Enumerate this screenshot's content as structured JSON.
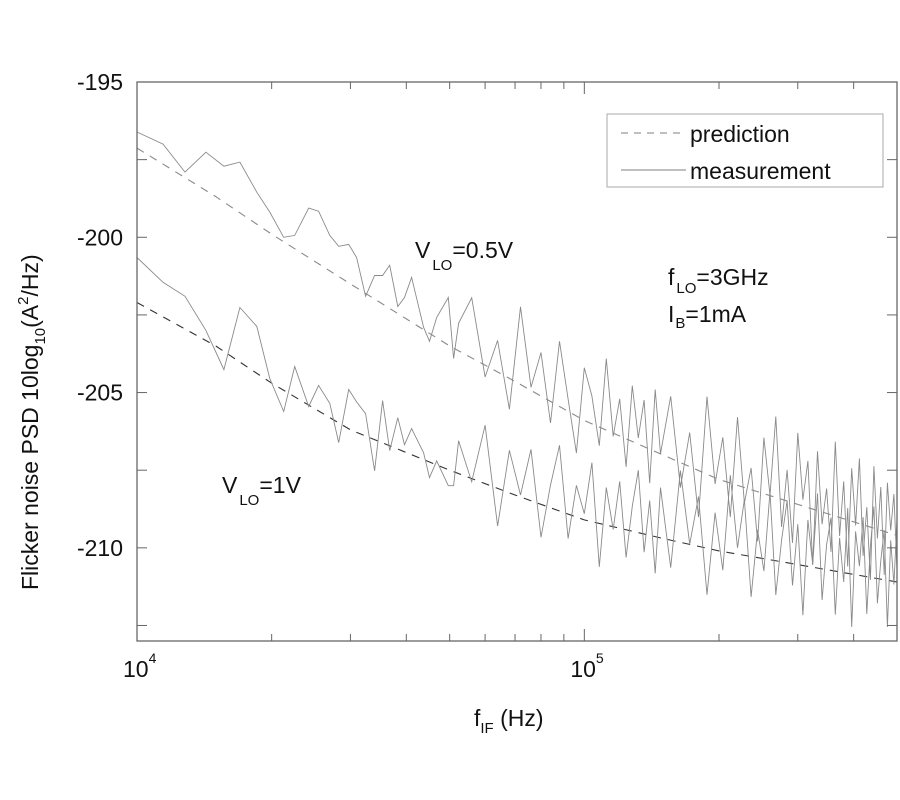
{
  "chart_data": {
    "type": "line",
    "xlabel": {
      "main": "f",
      "sub": "IF",
      "unit": " (Hz)"
    },
    "ylabel": {
      "pre": "Flicker noise PSD 10log",
      "sub": "10",
      "mid": "(A",
      "sup": "2",
      "post": "/Hz)"
    },
    "xscale": "log",
    "xlim": [
      10000,
      500000
    ],
    "ylim": [
      -213,
      -195
    ],
    "grid": false,
    "x_ticks": [
      {
        "value": 10000,
        "base": "10",
        "exp": "4"
      },
      {
        "value": 100000,
        "base": "10",
        "exp": "5"
      }
    ],
    "y_ticks": [
      {
        "value": -195,
        "label": "-195"
      },
      {
        "value": -200,
        "label": "-200"
      },
      {
        "value": -205,
        "label": "-205"
      },
      {
        "value": -210,
        "label": "-210"
      }
    ],
    "legend": {
      "placement": "top-right",
      "entries": [
        {
          "label": "prediction",
          "style": "dashed"
        },
        {
          "label": "measurement",
          "style": "solid"
        }
      ]
    },
    "annotations": [
      {
        "id": "vlo05",
        "main": "V",
        "sub": "LO",
        "rest": "=0.5V"
      },
      {
        "id": "vlo1",
        "main": "V",
        "sub": "LO",
        "rest": "=1V"
      },
      {
        "id": "flo",
        "main": "f",
        "sub": "LO",
        "rest": "=3GHz"
      },
      {
        "id": "ib",
        "main": "I",
        "sub": "B",
        "rest": "=1mA"
      }
    ],
    "colors": {
      "measurement": "#8a8a8a",
      "prediction_05": "#8a8a8a",
      "prediction_1": "#333333",
      "axis": "#666666"
    },
    "series": [
      {
        "id": "pred-0.5V",
        "kind": "prediction",
        "x": [
          10000,
          15000,
          20000,
          30000,
          50000,
          70000,
          100000,
          150000,
          200000,
          300000,
          500000
        ],
        "y": [
          -197.13,
          -198.69,
          -199.9,
          -201.5,
          -203.5,
          -204.64,
          -205.9,
          -207.01,
          -207.8,
          -208.6,
          -209.6
        ]
      },
      {
        "id": "pred-1V",
        "kind": "prediction",
        "x": [
          10000,
          15000,
          20000,
          30000,
          50000,
          70000,
          100000,
          150000,
          200000,
          300000,
          500000
        ],
        "y": [
          -202.1,
          -203.5,
          -204.7,
          -206.2,
          -207.5,
          -208.3,
          -209.1,
          -209.7,
          -210.1,
          -210.54,
          -211.1
        ]
      },
      {
        "id": "meas-0.5V",
        "kind": "measurement",
        "x": [
          10000,
          11430,
          12800,
          14260,
          15640,
          16980,
          18530,
          19810,
          21280,
          22520,
          24200,
          25470,
          26980,
          28240,
          29730,
          30970,
          32430,
          33970,
          35400,
          36720,
          38280,
          39630,
          41110,
          43730,
          45080,
          46770,
          49660,
          51020,
          52360,
          56000,
          60000,
          64000,
          68000,
          72000,
          76000,
          80000,
          84000,
          88000,
          92000,
          96000,
          100000,
          104000,
          108000,
          112000,
          116000,
          120000,
          124000,
          128000,
          132000,
          136000,
          140000,
          144000,
          148000,
          156000,
          164000,
          172000,
          180000,
          188000,
          196000,
          204000,
          212000,
          220000,
          228000,
          236000,
          244000,
          252000,
          260000,
          268000,
          276000,
          284000,
          292000,
          300000,
          308000,
          316000,
          324000,
          332000,
          340000,
          348000,
          356000,
          364000,
          372000,
          380000,
          388000,
          396000,
          404000,
          412000,
          420000,
          428000,
          436000,
          444000,
          452000,
          460000,
          468000,
          476000,
          484000,
          492000,
          500000
        ],
        "y": [
          -196.61,
          -197.0,
          -197.9,
          -197.26,
          -197.71,
          -197.58,
          -198.55,
          -199.19,
          -200.0,
          -199.94,
          -199.06,
          -199.16,
          -199.94,
          -200.29,
          -200.23,
          -200.65,
          -201.9,
          -201.23,
          -201.23,
          -200.9,
          -202.23,
          -201.94,
          -201.29,
          -202.9,
          -203.35,
          -202.58,
          -201.94,
          -203.9,
          -202.77,
          -201.95,
          -204.5,
          -203.32,
          -205.54,
          -202.24,
          -204.83,
          -203.71,
          -205.98,
          -203.35,
          -205.21,
          -206.95,
          -204.2,
          -205.11,
          -206.71,
          -203.91,
          -206.41,
          -205.2,
          -207.39,
          -204.78,
          -206.46,
          -205.24,
          -207.92,
          -204.9,
          -206.97,
          -205.12,
          -208.06,
          -206.29,
          -209.01,
          -205.13,
          -207.94,
          -206.44,
          -209.01,
          -205.79,
          -208.56,
          -207.43,
          -209.79,
          -206.45,
          -208.31,
          -205.77,
          -209.33,
          -207.49,
          -209.84,
          -206.3,
          -208.45,
          -207.2,
          -210.55,
          -206.89,
          -209.24,
          -208.09,
          -210.13,
          -206.58,
          -209.62,
          -207.86,
          -210.6,
          -207.44,
          -209.28,
          -207.12,
          -210.26,
          -208.69,
          -211.03,
          -207.37,
          -209.7,
          -208.04,
          -210.87,
          -207.9,
          -209.44,
          -208.27,
          -210.7
        ]
      },
      {
        "id": "meas-1V",
        "kind": "measurement",
        "x": [
          10000,
          11430,
          12800,
          14260,
          15640,
          16980,
          18530,
          19810,
          21280,
          22520,
          24200,
          25470,
          26980,
          28240,
          29730,
          30970,
          32430,
          33970,
          35400,
          36720,
          38280,
          39630,
          41110,
          43730,
          45080,
          46770,
          49660,
          51020,
          52360,
          56000,
          60000,
          64000,
          68000,
          72000,
          76000,
          80000,
          84000,
          88000,
          92000,
          96000,
          100000,
          104000,
          108000,
          112000,
          116000,
          120000,
          124000,
          128000,
          132000,
          136000,
          140000,
          144000,
          148000,
          156000,
          164000,
          172000,
          180000,
          188000,
          196000,
          204000,
          212000,
          220000,
          228000,
          236000,
          244000,
          252000,
          260000,
          268000,
          276000,
          284000,
          292000,
          300000,
          308000,
          316000,
          324000,
          332000,
          340000,
          348000,
          356000,
          364000,
          372000,
          380000,
          388000,
          396000,
          404000,
          412000,
          420000,
          428000,
          436000,
          444000,
          452000,
          460000,
          468000,
          476000,
          484000,
          492000,
          500000
        ],
        "y": [
          -200.65,
          -201.45,
          -201.9,
          -203.0,
          -204.26,
          -202.26,
          -202.87,
          -204.55,
          -205.61,
          -204.16,
          -205.45,
          -204.77,
          -205.35,
          -206.61,
          -204.9,
          -205.3,
          -205.68,
          -207.52,
          -205.26,
          -206.87,
          -205.81,
          -206.68,
          -206.16,
          -206.94,
          -207.74,
          -207.2,
          -208.0,
          -208.0,
          -206.55,
          -207.87,
          -206.05,
          -209.3,
          -206.86,
          -208.3,
          -206.83,
          -209.66,
          -207.98,
          -206.7,
          -209.7,
          -207.99,
          -208.9,
          -207.26,
          -210.61,
          -208.06,
          -209.41,
          -207.86,
          -210.31,
          -208.66,
          -207.5,
          -210.14,
          -208.48,
          -210.82,
          -208.06,
          -210.64,
          -207.51,
          -209.88,
          -208.35,
          -211.51,
          -208.87,
          -210.72,
          -207.66,
          -210.0,
          -208.44,
          -211.58,
          -209.42,
          -210.75,
          -208.19,
          -211.52,
          -209.75,
          -208.48,
          -211.21,
          -209.24,
          -212.17,
          -209.1,
          -210.53,
          -208.25,
          -211.68,
          -209.9,
          -209.03,
          -212.15,
          -209.68,
          -211.1,
          -208.72,
          -212.55,
          -209.47,
          -210.59,
          -209.01,
          -212.13,
          -209.95,
          -208.67,
          -211.79,
          -210.41,
          -209.43,
          -212.55,
          -209.76,
          -211.18,
          -209.1
        ]
      }
    ]
  }
}
